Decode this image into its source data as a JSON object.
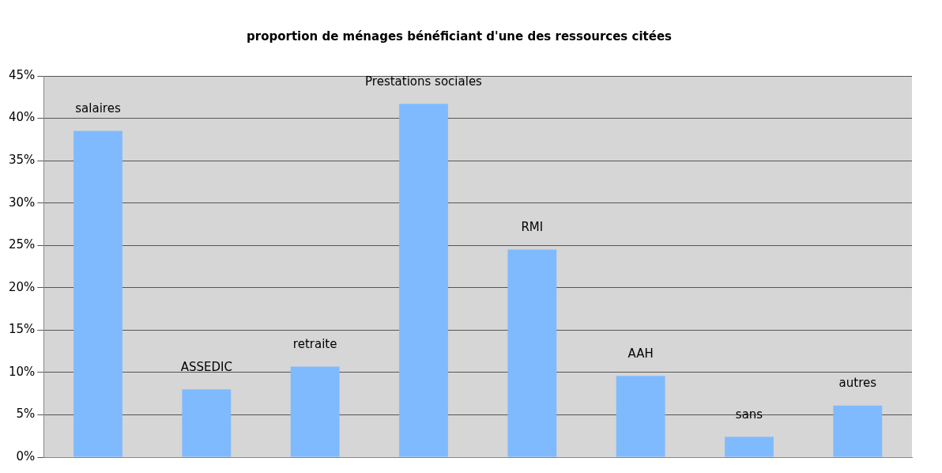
{
  "chart_data": {
    "type": "bar",
    "title": "proportion de ménages bénéficiant d'une des ressources citées",
    "categories": [
      "salaires",
      "ASSEDIC",
      "retraite",
      "Prestations sociales",
      "RMI",
      "AAH",
      "sans",
      "autres"
    ],
    "values": [
      38.5,
      8,
      10.7,
      41.7,
      24.5,
      9.6,
      2.4,
      6.1
    ],
    "color": "#7fbaff",
    "ylim": [
      0,
      45
    ],
    "yticks": [
      {
        "value": 0,
        "label": "0%"
      },
      {
        "value": 5,
        "label": "5%"
      },
      {
        "value": 10,
        "label": "10%"
      },
      {
        "value": 15,
        "label": "15%"
      },
      {
        "value": 20,
        "label": "20%"
      },
      {
        "value": 25,
        "label": "25%"
      },
      {
        "value": 30,
        "label": "30%"
      },
      {
        "value": 35,
        "label": "35%"
      },
      {
        "value": 40,
        "label": "40%"
      },
      {
        "value": 45,
        "label": "45%"
      }
    ],
    "grid": "y",
    "legend": false
  }
}
